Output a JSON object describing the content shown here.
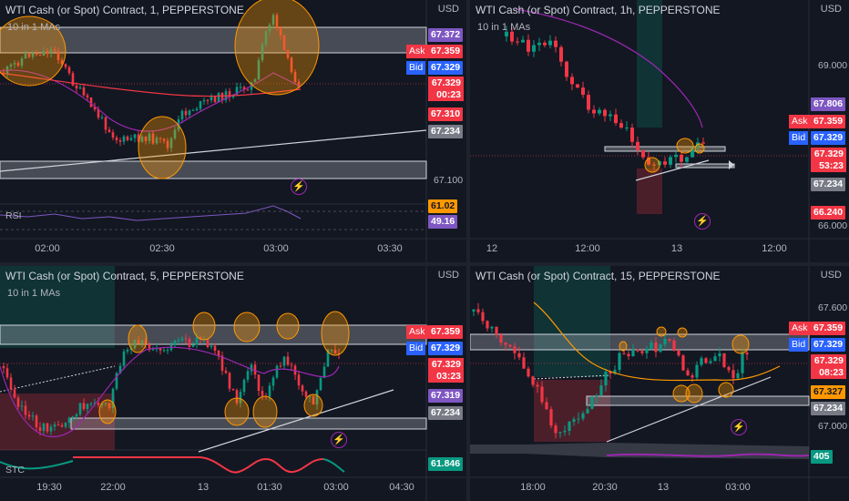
{
  "colors": {
    "up": "#089981",
    "down": "#f23645",
    "bg": "#131722",
    "divider": "#1e222d",
    "ma": "#9c27b0",
    "zone": "#d1d4dc",
    "highlight": "#ff9800"
  },
  "panes": [
    {
      "id": "p1",
      "title": "WTI Cash (or Spot) Contract, 1, PEPPERSTONE",
      "indicator": "10 in 1 MAs",
      "currency": "USD",
      "price_axis": [
        "67.100"
      ],
      "tags": [
        {
          "text": "67.372",
          "color": "purple"
        },
        {
          "text": "67.310",
          "color": "red"
        },
        {
          "text": "67.234",
          "color": "gray"
        }
      ],
      "ask": {
        "label": "Ask",
        "value": "67.359"
      },
      "bid": {
        "label": "Bid",
        "value": "67.329"
      },
      "last": {
        "price": "67.329",
        "countdown": "00:23"
      },
      "sub": {
        "name": "RSI",
        "values": [
          "61.02",
          "49.16"
        ]
      },
      "time_axis": [
        "02:00",
        "02:30",
        "03:00",
        "03:30"
      ]
    },
    {
      "id": "p2",
      "title": "WTI Cash (or Spot) Contract, 1h, PEPPERSTONE",
      "indicator": "10 in 1 MAs",
      "currency": "USD",
      "price_axis": [
        "69.000",
        "66.000"
      ],
      "tags": [
        {
          "text": "67.806",
          "color": "purple"
        },
        {
          "text": "67.234",
          "color": "gray"
        },
        {
          "text": "66.240",
          "color": "red"
        }
      ],
      "ask": {
        "label": "Ask",
        "value": "67.359"
      },
      "bid": {
        "label": "Bid",
        "value": "67.329"
      },
      "last": {
        "price": "67.329",
        "countdown": "53:23"
      },
      "time_axis": [
        "12",
        "12:00",
        "13",
        "12:00"
      ]
    },
    {
      "id": "p3",
      "title": "WTI Cash (or Spot) Contract, 5, PEPPERSTONE",
      "indicator": "10 in 1 MAs",
      "currency": "USD",
      "price_axis": [],
      "tags": [
        {
          "text": "67.319",
          "color": "purple"
        },
        {
          "text": "67.234",
          "color": "gray"
        },
        {
          "text": "61.846",
          "color": "green"
        }
      ],
      "ask": {
        "label": "Ask",
        "value": "67.359"
      },
      "bid": {
        "label": "Bid",
        "value": "67.329"
      },
      "last": {
        "price": "67.329",
        "countdown": "03:23"
      },
      "sub": {
        "name": "STC",
        "values": []
      },
      "time_axis": [
        "19:30",
        "22:00",
        "13",
        "01:30",
        "03:00",
        "04:30"
      ]
    },
    {
      "id": "p4",
      "title": "WTI Cash (or Spot) Contract, 15, PEPPERSTONE",
      "indicator": "",
      "currency": "USD",
      "price_axis": [
        "67.600",
        "67.000"
      ],
      "tags": [
        {
          "text": "67.327",
          "color": "orange"
        },
        {
          "text": "67.234",
          "color": "gray"
        },
        {
          "text": "405",
          "color": "green"
        }
      ],
      "ask": {
        "label": "Ask",
        "value": "67.359"
      },
      "bid": {
        "label": "Bid",
        "value": "67.329"
      },
      "last": {
        "price": "67.329",
        "countdown": "08:23"
      },
      "time_axis": [
        "18:00",
        "20:30",
        "13",
        "03:00"
      ]
    }
  ],
  "chart_data": [
    {
      "type": "candlestick",
      "title": "WTI Cash (or Spot) Contract, 1, PEPPERSTONE",
      "x": [
        "02:00",
        "02:30",
        "03:00",
        "03:30"
      ],
      "y_ticks": [
        67.1
      ],
      "support_zone": [
        67.14,
        67.17
      ],
      "resistance_zone": [
        67.36,
        67.39
      ],
      "last": 67.329
    },
    {
      "type": "candlestick",
      "title": "WTI Cash (or Spot) Contract, 1h, PEPPERSTONE",
      "x": [
        "12",
        "12:00",
        "13",
        "12:00"
      ],
      "y_ticks": [
        69.0,
        66.0
      ],
      "support_zone": [
        67.23,
        67.26
      ],
      "resistance_zone": [
        67.36,
        67.4
      ],
      "last": 67.329
    },
    {
      "type": "candlestick",
      "title": "WTI Cash (or Spot) Contract, 5, PEPPERSTONE",
      "x": [
        "19:30",
        "22:00",
        "13",
        "01:30",
        "03:00",
        "04:30"
      ],
      "support_zone": [
        67.23,
        67.26
      ],
      "resistance_zone": [
        67.36,
        67.4
      ],
      "last": 67.329
    },
    {
      "type": "candlestick",
      "title": "WTI Cash (or Spot) Contract, 15, PEPPERSTONE",
      "x": [
        "18:00",
        "20:30",
        "13",
        "03:00"
      ],
      "y_ticks": [
        67.6,
        67.0
      ],
      "support_zone": [
        67.23,
        67.26
      ],
      "resistance_zone": [
        67.36,
        67.4
      ],
      "last": 67.329
    }
  ]
}
